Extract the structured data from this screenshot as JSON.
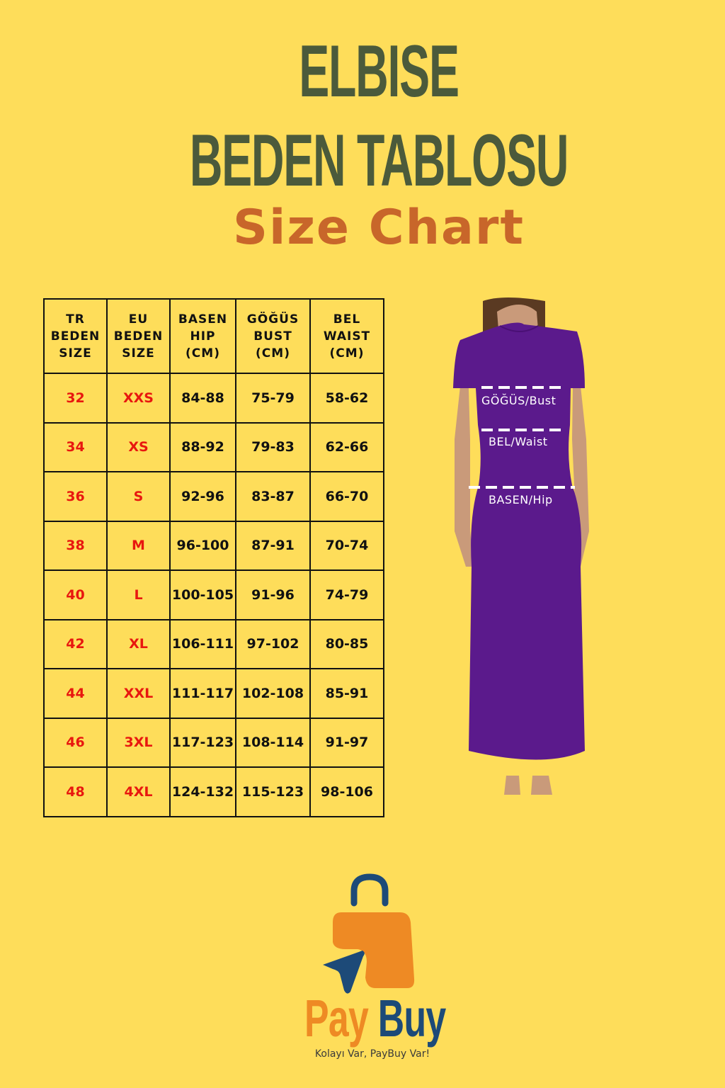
{
  "title": {
    "line1": "ELBISE",
    "line2": "BEDEN TABLOSU",
    "line3": "Size Chart"
  },
  "table": {
    "headers": [
      [
        "TR",
        "BEDEN",
        "SIZE"
      ],
      [
        "EU",
        "BEDEN",
        "SIZE"
      ],
      [
        "BASEN",
        "HIP",
        "(CM)"
      ],
      [
        "GÖĞÜS",
        "BUST",
        "(CM)"
      ],
      [
        "BEL",
        "WAIST",
        "(CM)"
      ]
    ],
    "rows": [
      [
        "32",
        "XXS",
        "84-88",
        "75-79",
        "58-62"
      ],
      [
        "34",
        "XS",
        "88-92",
        "79-83",
        "62-66"
      ],
      [
        "36",
        "S",
        "92-96",
        "83-87",
        "66-70"
      ],
      [
        "38",
        "M",
        "96-100",
        "87-91",
        "70-74"
      ],
      [
        "40",
        "L",
        "100-105",
        "91-96",
        "74-79"
      ],
      [
        "42",
        "XL",
        "106-111",
        "97-102",
        "80-85"
      ],
      [
        "44",
        "XXL",
        "111-117",
        "102-108",
        "85-91"
      ],
      [
        "46",
        "3XL",
        "117-123",
        "108-114",
        "91-97"
      ],
      [
        "48",
        "4XL",
        "124-132",
        "115-123",
        "98-106"
      ]
    ]
  },
  "figure": {
    "bust_label": "GÖĞÜS/Bust",
    "waist_label": "BEL/Waist",
    "hip_label": "BASEN/Hip",
    "dress_color": "#5b1a8c"
  },
  "brand": {
    "pay": "Pay",
    "buy": "Buy",
    "tagline": "Kolayı Var, PayBuy Var!",
    "orange": "#ee8a24",
    "blue": "#1d4a78"
  },
  "colors": {
    "background": "#fedd5a",
    "title_green": "#4b5a3b",
    "title_orange": "#c8662a",
    "size_red": "#e8170f"
  }
}
